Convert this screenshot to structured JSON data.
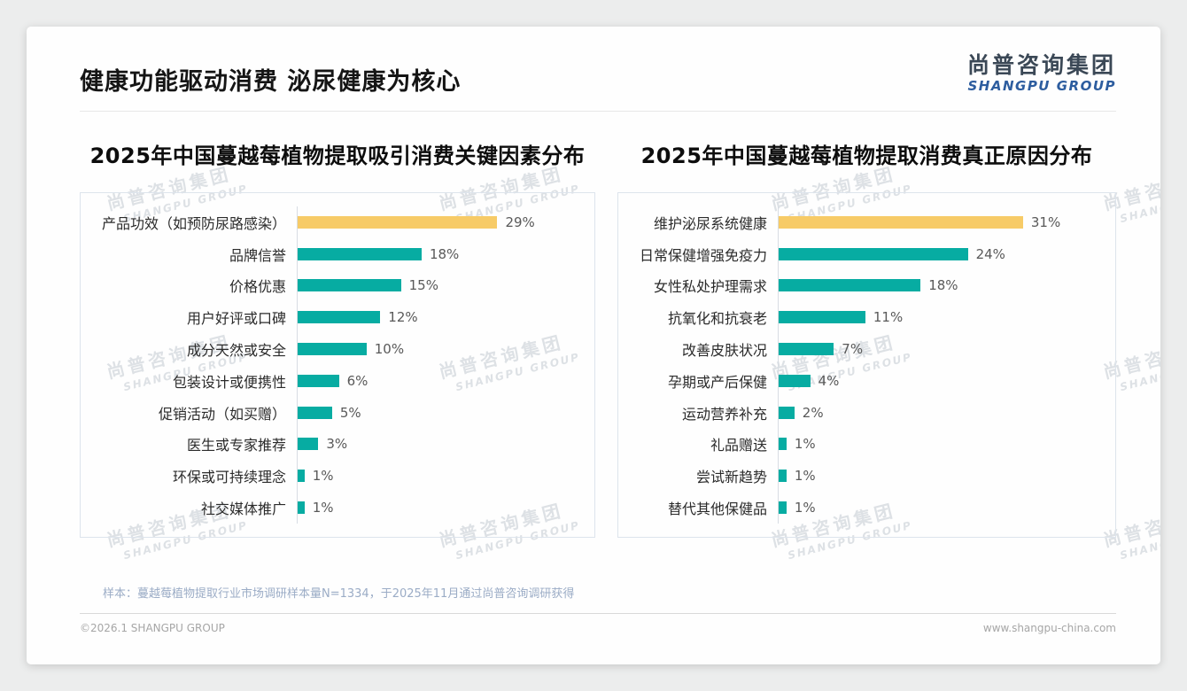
{
  "header": {
    "title": "健康功能驱动消费 泌尿健康为核心",
    "logo_cn": "尚普咨询集团",
    "logo_en": "SHANGPU GROUP"
  },
  "watermark": {
    "line1": "尚普咨询集团",
    "line2": "SHANGPU GROUP"
  },
  "colors": {
    "bar_teal": "#07ACA2",
    "bar_highlight": "#F7CB67",
    "logo_blue": "#2D5D9F",
    "logo_dark": "#3B4856"
  },
  "chart_data": [
    {
      "type": "bar",
      "orientation": "horizontal",
      "title": "2025年中国蔓越莓植物提取吸引消费关键因素分布",
      "categories": [
        "产品功效（如预防尿路感染）",
        "品牌信誉",
        "价格优惠",
        "用户好评或口碑",
        "成分天然或安全",
        "包装设计或便携性",
        "促销活动（如买赠）",
        "医生或专家推荐",
        "环保或可持续理念",
        "社交媒体推广"
      ],
      "values": [
        29,
        18,
        15,
        12,
        10,
        6,
        5,
        3,
        1,
        1
      ],
      "value_labels": [
        "29%",
        "18%",
        "15%",
        "12%",
        "10%",
        "6%",
        "5%",
        "3%",
        "1%",
        "1%"
      ],
      "unit": "%",
      "xlim": [
        0,
        40
      ],
      "grid": false,
      "legend": "none",
      "highlight_index": 0
    },
    {
      "type": "bar",
      "orientation": "horizontal",
      "title": "2025年中国蔓越莓植物提取消费真正原因分布",
      "categories": [
        "维护泌尿系统健康",
        "日常保健增强免疫力",
        "女性私处护理需求",
        "抗氧化和抗衰老",
        "改善皮肤状况",
        "孕期或产后保健",
        "运动营养补充",
        "礼品赠送",
        "尝试新趋势",
        "替代其他保健品"
      ],
      "values": [
        31,
        24,
        18,
        11,
        7,
        4,
        2,
        1,
        1,
        1
      ],
      "value_labels": [
        "31%",
        "24%",
        "18%",
        "11%",
        "7%",
        "4%",
        "2%",
        "1%",
        "1%",
        "1%"
      ],
      "unit": "%",
      "xlim": [
        0,
        40
      ],
      "grid": false,
      "legend": "none",
      "highlight_index": 0
    }
  ],
  "footnote": "样本：蔓越莓植物提取行业市场调研样本量N=1334，于2025年11月通过尚普咨询调研获得",
  "footer": {
    "copyright": "©2026.1 SHANGPU GROUP",
    "website": "www.shangpu-china.com"
  }
}
